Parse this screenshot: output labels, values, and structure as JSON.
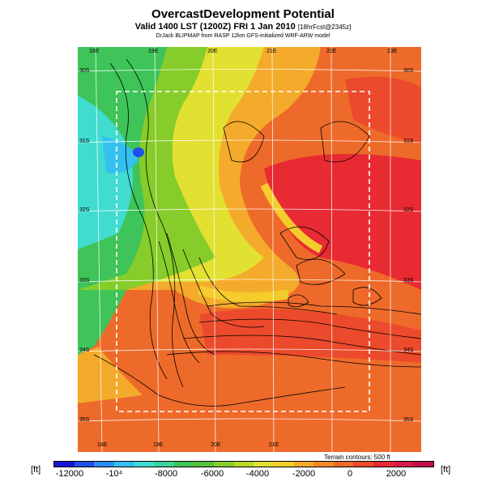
{
  "title": "OvercastDevelopment Potential",
  "subtitle": "Valid 1400 LST (1200Z) FRI 1 Jan 2010",
  "subtitle_note": "[18hrFcst@2345z]",
  "credit": "DrJack BLIPMAP from RASP 12km GFS-initialized WRF-ARW model",
  "terrain_note": "Terrain contours: 500 ft",
  "lon_labels_top": [
    "18E",
    "19E",
    "20E",
    "21E",
    "22E",
    "23E"
  ],
  "lon_labels_bottom": [
    "18E",
    "19E",
    "20E",
    "21E"
  ],
  "lat_labels_left": [
    "30S",
    "31S",
    "32S",
    "33S",
    "34S",
    "35S"
  ],
  "lat_labels_right": [
    "30S",
    "31S",
    "32S",
    "33S",
    "34S",
    "35S"
  ],
  "colorbar": {
    "unit_left": "[ft]",
    "unit_right": "[ft]",
    "labels": [
      "-12000",
      "-10⁴",
      "-8000",
      "-6000",
      "-4000",
      "-2000",
      "0",
      "2000"
    ],
    "colors": [
      "#1515d6",
      "#1f4fe8",
      "#2a8df0",
      "#35c0f0",
      "#40dcd0",
      "#3ed29a",
      "#3ec458",
      "#56c23a",
      "#86cc2a",
      "#b8d82a",
      "#e2e030",
      "#f4cc2c",
      "#f4aa2a",
      "#f28a28",
      "#ee6a2a",
      "#ec4a2c",
      "#e82a32",
      "#d81a4a",
      "#c0104a"
    ]
  },
  "map_colors": {
    "warm_base": "#ee6a2a",
    "cool_coast": "#3ec458",
    "cyan_core": "#35c0f0",
    "deep_blue": "#1f4fe8",
    "yellow": "#e2e030",
    "red": "#e82a32"
  }
}
